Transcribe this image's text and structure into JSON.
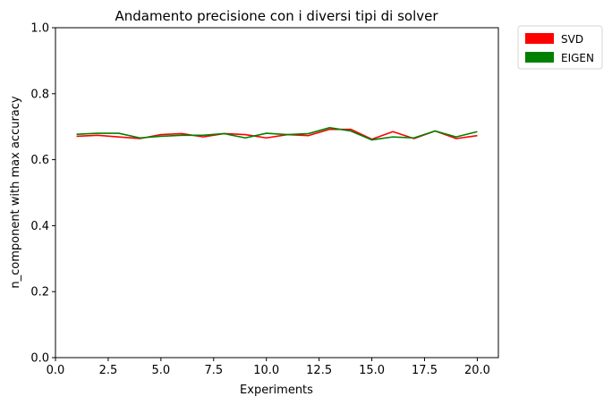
{
  "chart_data": {
    "type": "line",
    "title": "Andamento precisione con i diversi tipi di solver",
    "xlabel": "Experiments",
    "ylabel": "n_component with max accuracy",
    "xlim": [
      0,
      21
    ],
    "ylim": [
      0,
      1
    ],
    "xticks": [
      0,
      2.5,
      5,
      7.5,
      10,
      12.5,
      15,
      17.5,
      20
    ],
    "xtick_labels": [
      "0.0",
      "2.5",
      "5.0",
      "7.5",
      "10.0",
      "12.5",
      "15.0",
      "17.5",
      "20.0"
    ],
    "yticks": [
      0,
      0.2,
      0.4,
      0.6,
      0.8,
      1.0
    ],
    "ytick_labels": [
      "0.0",
      "0.2",
      "0.4",
      "0.6",
      "0.8",
      "1.0"
    ],
    "grid": false,
    "legend_position": "outside-top-right",
    "x": [
      1,
      2,
      3,
      4,
      5,
      6,
      7,
      8,
      9,
      10,
      11,
      12,
      13,
      14,
      15,
      16,
      17,
      18,
      19,
      20
    ],
    "series": [
      {
        "name": "SVD",
        "color": "#ff0000",
        "values": [
          0.671,
          0.674,
          0.669,
          0.664,
          0.676,
          0.679,
          0.669,
          0.679,
          0.676,
          0.666,
          0.676,
          0.673,
          0.692,
          0.692,
          0.662,
          0.685,
          0.664,
          0.687,
          0.664,
          0.673
        ]
      },
      {
        "name": "EIGEN",
        "color": "#008000",
        "values": [
          0.677,
          0.68,
          0.68,
          0.666,
          0.671,
          0.674,
          0.674,
          0.679,
          0.666,
          0.68,
          0.676,
          0.679,
          0.697,
          0.687,
          0.66,
          0.669,
          0.666,
          0.687,
          0.669,
          0.685
        ]
      }
    ]
  }
}
